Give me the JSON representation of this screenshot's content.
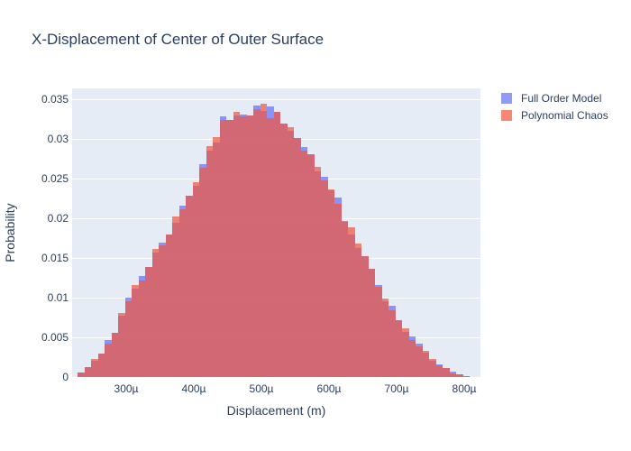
{
  "title": "X-Displacement of Center of Outer Surface",
  "colors": {
    "paper_background": "#ffffff",
    "plot_background": "#e5ecf6",
    "gridline": "#ffffff",
    "text": "#2a3f5f",
    "full_order_model": "#636efa",
    "polynomial_chaos": "#ef553b",
    "bar_opacity": 0.7
  },
  "legend": {
    "items": [
      {
        "label": "Full Order Model",
        "color": "#636efa"
      },
      {
        "label": "Polynomial Chaos",
        "color": "#ef553b"
      }
    ]
  },
  "chart_data": {
    "type": "bar",
    "subtype": "overlaid-histogram",
    "title": "X-Displacement of Center of Outer Surface",
    "xlabel": "Displacement (m)",
    "ylabel": "Probability",
    "legend_position": "top-right-outside",
    "grid": true,
    "ylim": [
      0,
      0.0364
    ],
    "xlim_micro": [
      220,
      824
    ],
    "bin_width_micro": 10,
    "x_ticks": [
      {
        "value": 300,
        "label": "300µ"
      },
      {
        "value": 400,
        "label": "400µ"
      },
      {
        "value": 500,
        "label": "500µ"
      },
      {
        "value": 600,
        "label": "600µ"
      },
      {
        "value": 700,
        "label": "700µ"
      },
      {
        "value": 800,
        "label": "800µ"
      }
    ],
    "y_ticks": [
      {
        "value": 0,
        "label": "0"
      },
      {
        "value": 0.005,
        "label": "0.005"
      },
      {
        "value": 0.01,
        "label": "0.01"
      },
      {
        "value": 0.015,
        "label": "0.015"
      },
      {
        "value": 0.02,
        "label": "0.02"
      },
      {
        "value": 0.025,
        "label": "0.025"
      },
      {
        "value": 0.03,
        "label": "0.03"
      },
      {
        "value": 0.035,
        "label": "0.035"
      }
    ],
    "bin_centers_micro": [
      233,
      243,
      253,
      263,
      273,
      283,
      293,
      303,
      313,
      323,
      333,
      343,
      353,
      363,
      373,
      383,
      393,
      403,
      413,
      423,
      433,
      443,
      453,
      463,
      473,
      483,
      493,
      503,
      513,
      523,
      533,
      543,
      553,
      563,
      573,
      583,
      593,
      603,
      613,
      623,
      633,
      643,
      653,
      663,
      673,
      683,
      693,
      703,
      713,
      723,
      733,
      743,
      753,
      763,
      773,
      783,
      793,
      803
    ],
    "series": [
      {
        "name": "Full Order Model",
        "color": "#636efa",
        "values": [
          0.0006,
          0.0012,
          0.002,
          0.003,
          0.0047,
          0.0056,
          0.0077,
          0.01,
          0.0112,
          0.0127,
          0.0139,
          0.0157,
          0.017,
          0.018,
          0.0194,
          0.0216,
          0.0229,
          0.0241,
          0.0268,
          0.0286,
          0.0296,
          0.0329,
          0.0324,
          0.033,
          0.0331,
          0.033,
          0.0342,
          0.0336,
          0.0341,
          0.0335,
          0.032,
          0.0311,
          0.0301,
          0.029,
          0.0281,
          0.0259,
          0.0253,
          0.0235,
          0.0226,
          0.0197,
          0.018,
          0.0163,
          0.0152,
          0.0137,
          0.0116,
          0.0095,
          0.009,
          0.0072,
          0.0057,
          0.0051,
          0.0042,
          0.0031,
          0.0021,
          0.0016,
          0.0011,
          0.0007,
          0.0003,
          0.0001
        ]
      },
      {
        "name": "Polynomial Chaos",
        "color": "#ef553b",
        "values": [
          0.0006,
          0.0012,
          0.0023,
          0.003,
          0.0042,
          0.0056,
          0.0081,
          0.0095,
          0.0116,
          0.0122,
          0.0139,
          0.0162,
          0.0166,
          0.018,
          0.0202,
          0.0212,
          0.0229,
          0.0246,
          0.0264,
          0.0291,
          0.0303,
          0.0324,
          0.0324,
          0.0335,
          0.0329,
          0.033,
          0.0338,
          0.0345,
          0.0326,
          0.0335,
          0.032,
          0.0315,
          0.0301,
          0.0286,
          0.0281,
          0.0265,
          0.0248,
          0.0237,
          0.0218,
          0.0196,
          0.0189,
          0.0168,
          0.0152,
          0.0137,
          0.0114,
          0.0099,
          0.0084,
          0.0072,
          0.0061,
          0.0047,
          0.0039,
          0.0033,
          0.0023,
          0.0015,
          0.0011,
          0.0005,
          0.0003,
          0.0001
        ]
      }
    ]
  }
}
